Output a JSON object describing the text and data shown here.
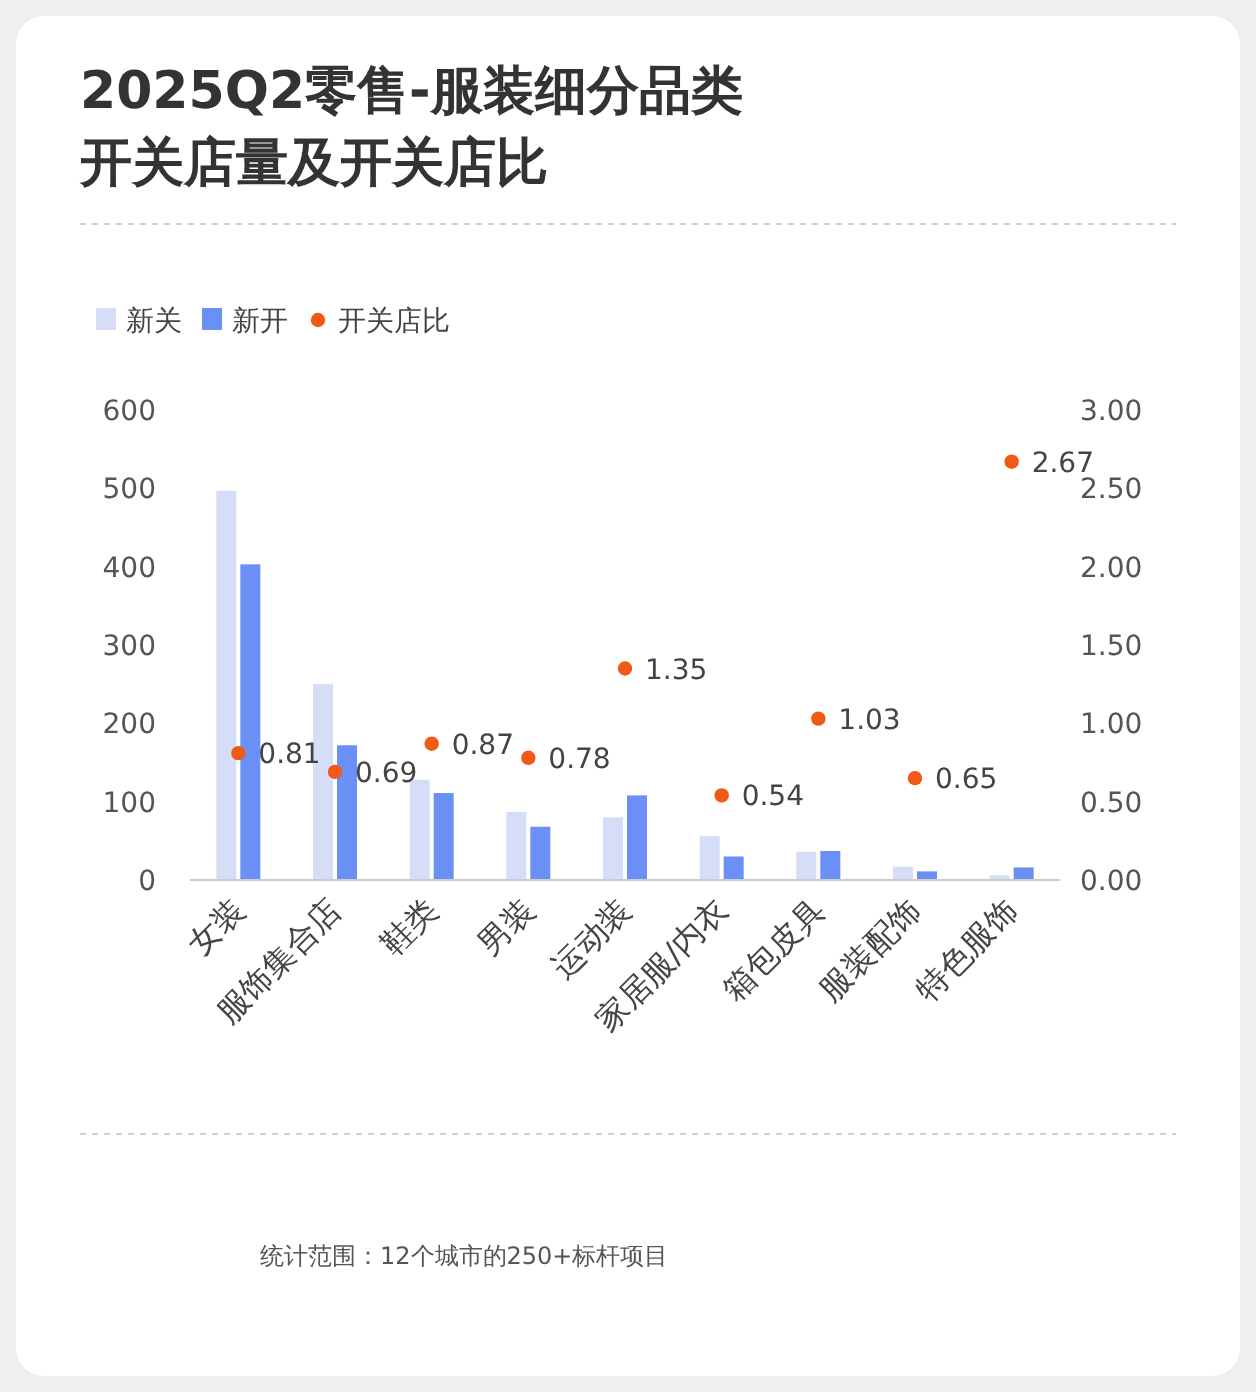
{
  "chart_data": {
    "type": "bar",
    "title": "2025Q2零售-服装细分品类开关店量及开关店比",
    "categories": [
      "女装",
      "服饰集合店",
      "鞋类",
      "男装",
      "运动装",
      "家居服/内衣",
      "箱包皮具",
      "服装配饰",
      "特色服饰"
    ],
    "series": [
      {
        "name": "新关",
        "color": "#d5ddf7",
        "values": [
          497,
          250,
          128,
          87,
          80,
          56,
          36,
          17,
          6
        ]
      },
      {
        "name": "新开",
        "color": "#6a8ff5",
        "values": [
          403,
          172,
          111,
          68,
          108,
          30,
          37,
          11,
          16
        ]
      },
      {
        "name": "开关店比",
        "type": "scatter",
        "axis": "y2",
        "color": "#f05a14",
        "values": [
          0.81,
          0.69,
          0.87,
          0.78,
          1.35,
          0.54,
          1.03,
          0.65,
          2.67
        ],
        "value_labels": [
          "0.81",
          "0.69",
          "0.87",
          "0.78",
          "1.35",
          "0.54",
          "1.03",
          "0.65",
          "2.67"
        ]
      }
    ],
    "ylim": [
      0,
      600
    ],
    "yticks": [
      0,
      100,
      200,
      300,
      400,
      500,
      600
    ],
    "y2lim": [
      0,
      3
    ],
    "y2ticks": [
      {
        "value": 0,
        "label": "0.00"
      },
      {
        "value": 0.5,
        "label": "0.50"
      },
      {
        "value": 1,
        "label": "1.00"
      },
      {
        "value": 1.5,
        "label": "1.50"
      },
      {
        "value": 2,
        "label": "2.00"
      },
      {
        "value": 2.5,
        "label": "2.50"
      },
      {
        "value": 3,
        "label": "3.00"
      }
    ],
    "legend": "top left",
    "grid": false,
    "marker": "circle",
    "annotations": [
      "统计范围：12个城市的250+标杆项目"
    ]
  }
}
